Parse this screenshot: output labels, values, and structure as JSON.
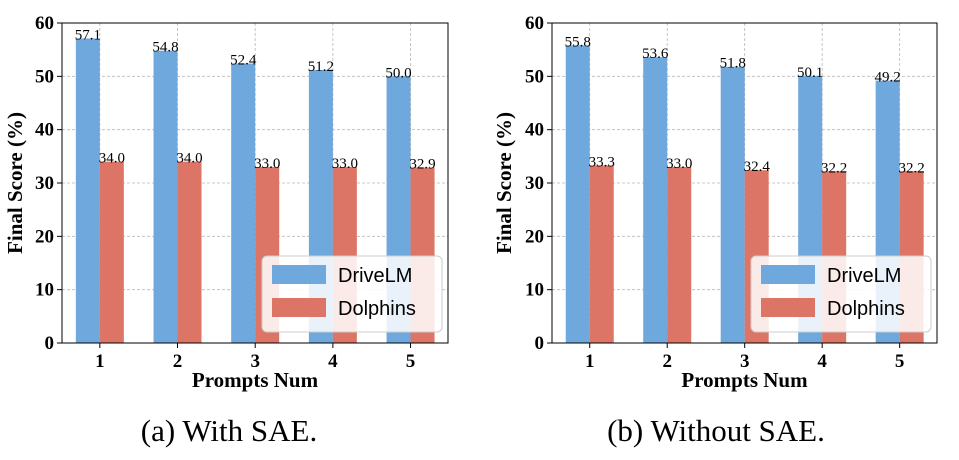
{
  "colors": {
    "DriveLM": "#6fa8dc",
    "Dolphins": "#dd7566",
    "grid": "#b8b8b8"
  },
  "chart_data": [
    {
      "type": "bar",
      "caption": "(a) With SAE.",
      "xlabel": "Prompts Num",
      "ylabel": "Final Score (%)",
      "ylim": [
        0,
        60
      ],
      "yticks": [
        "0",
        "10",
        "20",
        "30",
        "40",
        "50",
        "60"
      ],
      "categories": [
        "1",
        "2",
        "3",
        "4",
        "5"
      ],
      "grid": true,
      "legend_position": "lower-right",
      "series": [
        {
          "name": "DriveLM",
          "values": [
            57.1,
            54.8,
            52.4,
            51.2,
            50.0
          ],
          "labels": [
            "57.1",
            "54.8",
            "52.4",
            "51.2",
            "50.0"
          ]
        },
        {
          "name": "Dolphins",
          "values": [
            34.0,
            34.0,
            33.0,
            33.0,
            32.9
          ],
          "labels": [
            "34.0",
            "34.0",
            "33.0",
            "33.0",
            "32.9"
          ]
        }
      ]
    },
    {
      "type": "bar",
      "caption": "(b) Without SAE.",
      "xlabel": "Prompts Num",
      "ylabel": "Final Score (%)",
      "ylim": [
        0,
        60
      ],
      "yticks": [
        "0",
        "10",
        "20",
        "30",
        "40",
        "50",
        "60"
      ],
      "categories": [
        "1",
        "2",
        "3",
        "4",
        "5"
      ],
      "grid": true,
      "legend_position": "lower-right",
      "series": [
        {
          "name": "DriveLM",
          "values": [
            55.8,
            53.6,
            51.8,
            50.1,
            49.2
          ],
          "labels": [
            "55.8",
            "53.6",
            "51.8",
            "50.1",
            "49.2"
          ]
        },
        {
          "name": "Dolphins",
          "values": [
            33.3,
            33.0,
            32.4,
            32.2,
            32.2
          ],
          "labels": [
            "33.3",
            "33.0",
            "32.4",
            "32.2",
            "32.2"
          ]
        }
      ]
    }
  ]
}
